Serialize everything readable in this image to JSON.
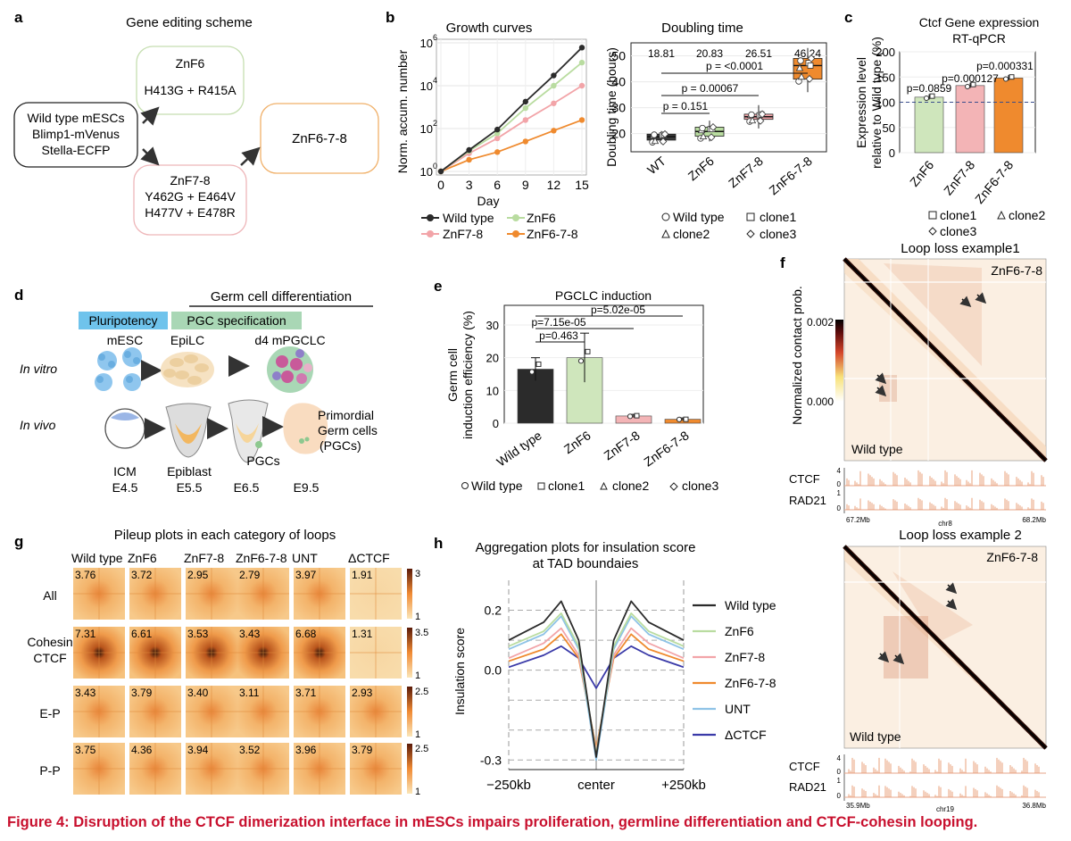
{
  "caption": "Figure 4: Disruption of the CTCF dimerization interface in mESCs impairs proliferation, germline differentiation and CTCF-cohesin looping.",
  "panels": {
    "a": {
      "letter": "a",
      "title": "Gene editing scheme",
      "wt_lines": [
        "Wild type mESCs",
        "Blimp1-mVenus",
        "Stella-ECFP"
      ],
      "znf6_title": "ZnF6",
      "znf6_mut": "H413G + R415A",
      "znf78_title": "ZnF7-8",
      "znf78_mut1": "Y462G + E464V",
      "znf78_mut2": "H477V + E478R",
      "znf678_title": "ZnF6-7-8"
    },
    "b": {
      "letter": "b",
      "growth_title": "Growth curves",
      "growth_ylabel": "Norm. accum. number",
      "growth_xlabel": "Day",
      "growth_yticks": [
        "10",
        "10",
        "10",
        "10"
      ],
      "growth_yexp": [
        "0",
        "2",
        "4",
        "6"
      ],
      "growth_xticks": [
        "0",
        "3",
        "6",
        "9",
        "12",
        "15"
      ],
      "legend": [
        "Wild type",
        "ZnF6",
        "ZnF7-8",
        "ZnF6-7-8"
      ],
      "doubling_title": "Doubling time",
      "doubling_ylabel": "Doubling time (hours)",
      "doubling_yticks": [
        "20",
        "30",
        "40",
        "50"
      ],
      "doubling_cats": [
        "WT",
        "ZnF6",
        "ZnF7-8",
        "ZnF6-7-8"
      ],
      "doubling_means": [
        "18.81",
        "20.83",
        "26.51",
        "46.24"
      ],
      "pvals": [
        "p = 0.151",
        "p = 0.00067",
        "p = <0.0001"
      ],
      "clone_legend": [
        "Wild type",
        "clone1",
        "clone2",
        "clone3"
      ]
    },
    "c": {
      "letter": "c",
      "title1": "Ctcf Gene expression",
      "title2": "RT-qPCR",
      "ylabel1": "Expression level",
      "ylabel2": "relative to Wild type (%)",
      "yticks": [
        "0",
        "50",
        "100",
        "150",
        "200"
      ],
      "cats": [
        "ZnF6",
        "ZnF7-8",
        "ZnF6-7-8"
      ],
      "pvals": [
        "p=0.0859",
        "p=0.000127",
        "p=0.000331"
      ],
      "clone_legend": [
        "clone1",
        "clone2",
        "clone3"
      ]
    },
    "d": {
      "letter": "d",
      "germ": "Germ cell differentiation",
      "pluri": "Pluripotency",
      "pgcspec": "PGC specification",
      "mesc": "mESC",
      "epilc": "EpiLC",
      "pgclc": "d4 mPGCLC",
      "invitro": "In vitro",
      "invivo": "In vivo",
      "icm": "ICM",
      "e45": "E4.5",
      "epiblast": "Epiblast",
      "e55": "E5.5",
      "e65": "E6.5",
      "pgcs": "PGCs",
      "e95": "E9.5",
      "primordial": [
        "Primordial",
        "Germ cells",
        "(PGCs)"
      ]
    },
    "e": {
      "letter": "e",
      "title": "PGCLC induction",
      "ylabel": [
        "Germ cell",
        "induction efficiency (%)"
      ],
      "yticks": [
        "0",
        "10",
        "20",
        "30"
      ],
      "cats": [
        "Wild type",
        "ZnF6",
        "ZnF7-8",
        "ZnF6-7-8"
      ],
      "pvals": [
        "p=0.463",
        "p=7.15e-05",
        "p=5.02e-05"
      ],
      "clone_legend": [
        "Wild type",
        "clone1",
        "clone2",
        "clone3"
      ]
    },
    "f": {
      "letter": "f",
      "title1": "Loop loss example1",
      "title2": "Loop loss example 2",
      "mutant": "ZnF6-7-8",
      "wt": "Wild type",
      "cbar_label": "Normalized contact prob.",
      "cbar_ticks": [
        "0.002",
        "0.000"
      ],
      "ctcf": "CTCF",
      "rad21": "RAD21",
      "track1_ticks": [
        "4",
        "0",
        "1",
        "0"
      ],
      "track2_ticks": [
        "4",
        "0",
        "1",
        "0"
      ],
      "coords1": [
        "67.2Mb",
        "chr8",
        "68.2Mb"
      ],
      "coords2": [
        "35.9Mb",
        "chr19",
        "36.8Mb"
      ]
    },
    "g": {
      "letter": "g",
      "title": "Pileup plots in each category of loops",
      "cols": [
        "Wild type",
        "ZnF6",
        "ZnF7-8",
        "ZnF6-7-8",
        "UNT",
        "ΔCTCF"
      ],
      "rows": [
        "All",
        "Cohesin\nCTCF",
        "E-P",
        "P-P"
      ],
      "row_labels": [
        [
          "All"
        ],
        [
          "Cohesin",
          "CTCF"
        ],
        [
          "E-P"
        ],
        [
          "P-P"
        ]
      ],
      "values": [
        [
          "3.76",
          "3.72",
          "2.95",
          "2.79",
          "3.97",
          "1.91"
        ],
        [
          "7.31",
          "6.61",
          "3.53",
          "3.43",
          "6.68",
          "1.31"
        ],
        [
          "3.43",
          "3.79",
          "3.40",
          "3.11",
          "3.71",
          "2.93"
        ],
        [
          "3.75",
          "4.36",
          "3.94",
          "3.52",
          "3.96",
          "3.79"
        ]
      ],
      "cbar_max": [
        "3",
        "3.5",
        "2.5",
        "2.5"
      ],
      "cbar_min": [
        "1",
        "1",
        "1",
        "1"
      ]
    },
    "h": {
      "letter": "h",
      "title1": "Aggregation plots for insulation score",
      "title2": "at TAD boundaies",
      "ylabel": "Insulation score",
      "yticks": [
        "0.2",
        "0.0",
        "-0.3"
      ],
      "xticks": [
        "−250kb",
        "center",
        "+250kb"
      ],
      "legend": [
        "Wild type",
        "ZnF6",
        "ZnF7-8",
        "ZnF6-7-8",
        "UNT",
        "ΔCTCF"
      ]
    }
  },
  "colors": {
    "wt": "#2b2b2b",
    "znf6": "#b9dca0",
    "znf78": "#f2a4a8",
    "znf678": "#ef8a2e",
    "unt": "#8ec3e6",
    "dctcf": "#3a3aa8",
    "caption": "#c8102e"
  },
  "chart_data": [
    {
      "type": "line",
      "title": "Growth curves",
      "xlabel": "Day",
      "ylabel": "Norm. accum. number",
      "yscale": "log10",
      "x": [
        0,
        3,
        6,
        9,
        12,
        15
      ],
      "ylim": [
        1,
        1000000
      ],
      "series": [
        {
          "name": "Wild type",
          "values": [
            1,
            10,
            90,
            1800,
            30000,
            600000
          ]
        },
        {
          "name": "ZnF6",
          "values": [
            1,
            9,
            60,
            900,
            10000,
            120000
          ]
        },
        {
          "name": "ZnF7-8",
          "values": [
            1,
            7,
            35,
            250,
            1500,
            10000
          ]
        },
        {
          "name": "ZnF6-7-8",
          "values": [
            1,
            3.5,
            8,
            25,
            80,
            250
          ]
        }
      ]
    },
    {
      "type": "box",
      "title": "Doubling time",
      "ylabel": "Doubling time (hours)",
      "categories": [
        "WT",
        "ZnF6",
        "ZnF7-8",
        "ZnF6-7-8"
      ],
      "means": [
        18.81,
        20.83,
        26.51,
        46.24
      ],
      "ylim": [
        13,
        55
      ]
    },
    {
      "type": "bar",
      "title": "Ctcf Gene expression RT-qPCR",
      "ylabel": "Expression level relative to Wild type (%)",
      "categories": [
        "ZnF6",
        "ZnF7-8",
        "ZnF6-7-8"
      ],
      "values": [
        110,
        133,
        148
      ],
      "reference_line": 100,
      "ylim": [
        0,
        200
      ]
    },
    {
      "type": "bar",
      "title": "PGCLC induction",
      "ylabel": "Germ cell induction efficiency (%)",
      "categories": [
        "Wild type",
        "ZnF6",
        "ZnF7-8",
        "ZnF6-7-8"
      ],
      "values": [
        16.5,
        20,
        2.2,
        1.2
      ],
      "errors": [
        3.5,
        7.5,
        0.5,
        0.4
      ],
      "ylim": [
        0,
        36
      ]
    },
    {
      "type": "line",
      "title": "Aggregation plots for insulation score at TAD boundaies",
      "ylabel": "Insulation score",
      "x": [
        -250,
        -150,
        -100,
        -50,
        0,
        50,
        100,
        150,
        250
      ],
      "ylim": [
        -0.32,
        0.3
      ],
      "series": [
        {
          "name": "Wild type",
          "values": [
            0.1,
            0.16,
            0.23,
            0.1,
            -0.29,
            0.1,
            0.23,
            0.16,
            0.1
          ]
        },
        {
          "name": "ZnF6",
          "values": [
            0.08,
            0.13,
            0.19,
            0.08,
            -0.28,
            0.08,
            0.19,
            0.13,
            0.08
          ]
        },
        {
          "name": "ZnF7-8",
          "values": [
            0.04,
            0.09,
            0.14,
            0.05,
            -0.27,
            0.05,
            0.14,
            0.09,
            0.04
          ]
        },
        {
          "name": "ZnF6-7-8",
          "values": [
            0.03,
            0.07,
            0.12,
            0.04,
            -0.26,
            0.04,
            0.12,
            0.07,
            0.03
          ]
        },
        {
          "name": "UNT",
          "values": [
            0.07,
            0.12,
            0.18,
            0.07,
            -0.3,
            0.07,
            0.18,
            0.12,
            0.07
          ]
        },
        {
          "name": "ΔCTCF",
          "values": [
            0.01,
            0.05,
            0.08,
            0.04,
            -0.06,
            0.04,
            0.08,
            0.05,
            0.01
          ]
        }
      ]
    }
  ]
}
